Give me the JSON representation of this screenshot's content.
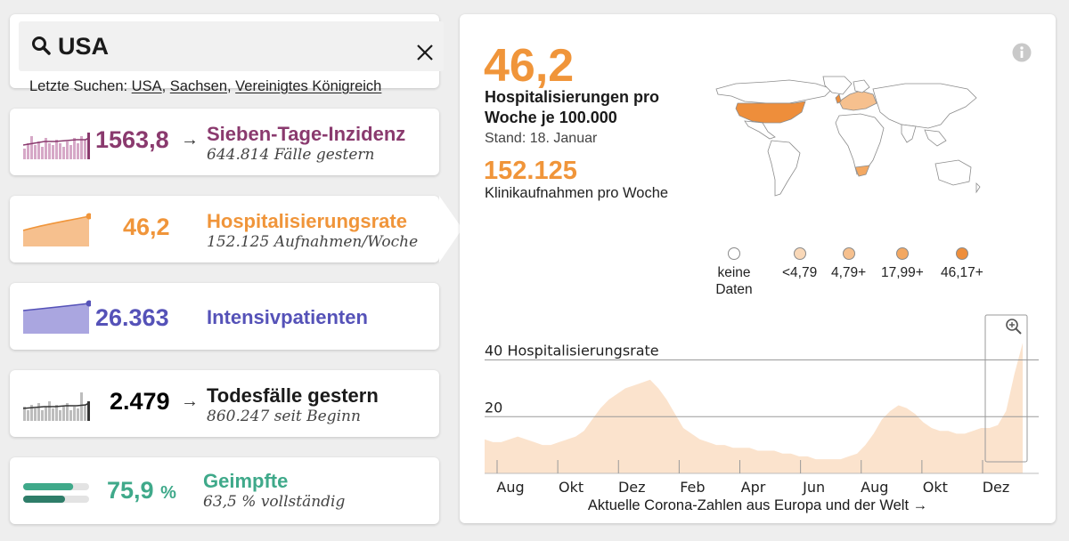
{
  "search": {
    "value": "USA",
    "recent_label": "Letzte Suchen:",
    "recent": [
      "USA",
      "Sachsen",
      "Vereinigtes Königreich"
    ]
  },
  "metrics": [
    {
      "id": "incidence",
      "value": "1563,8",
      "arrow": "→",
      "title": "Sieben-Tage-Inzidenz",
      "sub": "644.814 Fälle gestern",
      "color": "#8a3a6e"
    },
    {
      "id": "hospital",
      "value": "46,2",
      "arrow": "",
      "title": "Hospitalisierungsrate",
      "sub": "152.125 Aufnahmen/Woche",
      "color": "#f0953a"
    },
    {
      "id": "icu",
      "value": "26.363",
      "arrow": "",
      "title": "Intensivpatienten",
      "sub": "",
      "color": "#5552b8"
    },
    {
      "id": "deaths",
      "value": "2.479",
      "arrow": "→",
      "title": "Todesfälle gestern",
      "sub": "860.247 seit Beginn",
      "color": "#1a1a1a"
    },
    {
      "id": "vaccinated",
      "value": "75,9",
      "arrow": "",
      "title": "Geimpfte",
      "sub": "63,5 % vollständig",
      "color": "#3fa98a"
    }
  ],
  "vaccine": {
    "first_dose_fraction": 0.759,
    "full_fraction": 0.635
  },
  "detail": {
    "value": "46,2",
    "label": "Hospitalisierungen pro Woche je 100.000",
    "stand": "Stand: 18. Januar",
    "second_value": "152.125",
    "second_label": "Klinikaufnahmen pro Woche",
    "footer_link": "Aktuelle Corona-Zahlen aus Europa und der Welt →"
  },
  "legend": [
    {
      "label": "keine Daten",
      "color": "#ffffff"
    },
    {
      "label": "<4,79",
      "color": "#f9d8b8"
    },
    {
      "label": "4,79+",
      "color": "#f6c08e"
    },
    {
      "label": "17,99+",
      "color": "#f3a862"
    },
    {
      "label": "46,17+",
      "color": "#ee8e3b"
    }
  ],
  "colors": {
    "accent": "#f0953a",
    "incidence": "#8a3a6e",
    "icu": "#5552b8",
    "vaccine": "#3fa98a",
    "vaccine_full": "#2e7d69"
  },
  "icons": {
    "search": "search-icon",
    "close": "close-icon",
    "info": "info-icon",
    "zoom": "zoom-in-icon"
  },
  "chart_data": {
    "type": "area",
    "ylabel": "Hospitalisierungsrate",
    "y_ticks": [
      20,
      40
    ],
    "ylim": [
      0,
      48
    ],
    "x_ticks": [
      "Aug",
      "Okt",
      "Dez",
      "Feb",
      "Apr",
      "Jun",
      "Aug",
      "Okt",
      "Dez"
    ],
    "series": [
      {
        "values": [
          12,
          11,
          11,
          12,
          13,
          12,
          11,
          10,
          10,
          11,
          12,
          13,
          15,
          19,
          23,
          26,
          28,
          30,
          31,
          32,
          33,
          30,
          26,
          21,
          16,
          14,
          12,
          11,
          10,
          10,
          9,
          9,
          9,
          8,
          8,
          8,
          7,
          7,
          6,
          6,
          5,
          5,
          5,
          5,
          6,
          7,
          10,
          14,
          19,
          22,
          24,
          23,
          21,
          18,
          16,
          15,
          15,
          14,
          14,
          15,
          16,
          16,
          17,
          22,
          35,
          46
        ]
      }
    ],
    "grid": true
  }
}
